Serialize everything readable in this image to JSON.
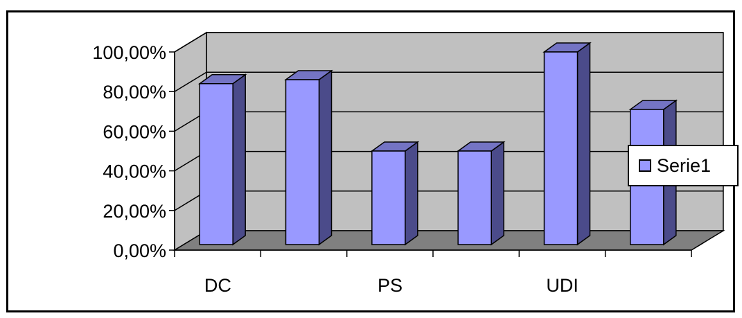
{
  "chart_data": {
    "type": "bar",
    "categories": [
      "DC",
      "",
      "PS",
      "",
      "UDI",
      ""
    ],
    "series": [
      {
        "name": "Serie1",
        "values": [
          0.84,
          0.86,
          0.5,
          0.5,
          1.0,
          0.71
        ]
      }
    ],
    "ylim": [
      0,
      1.0
    ],
    "yticks": [
      "0,00%",
      "20,00%",
      "40,00%",
      "60,00%",
      "80,00%",
      "100,00%"
    ],
    "grid": true,
    "legend_position": "right",
    "colors": {
      "bar_front": "#9999ff",
      "bar_side": "#4b4b8a",
      "bar_top": "#7474c4",
      "back_wall": "#c0c0c0",
      "floor": "#808080"
    }
  }
}
